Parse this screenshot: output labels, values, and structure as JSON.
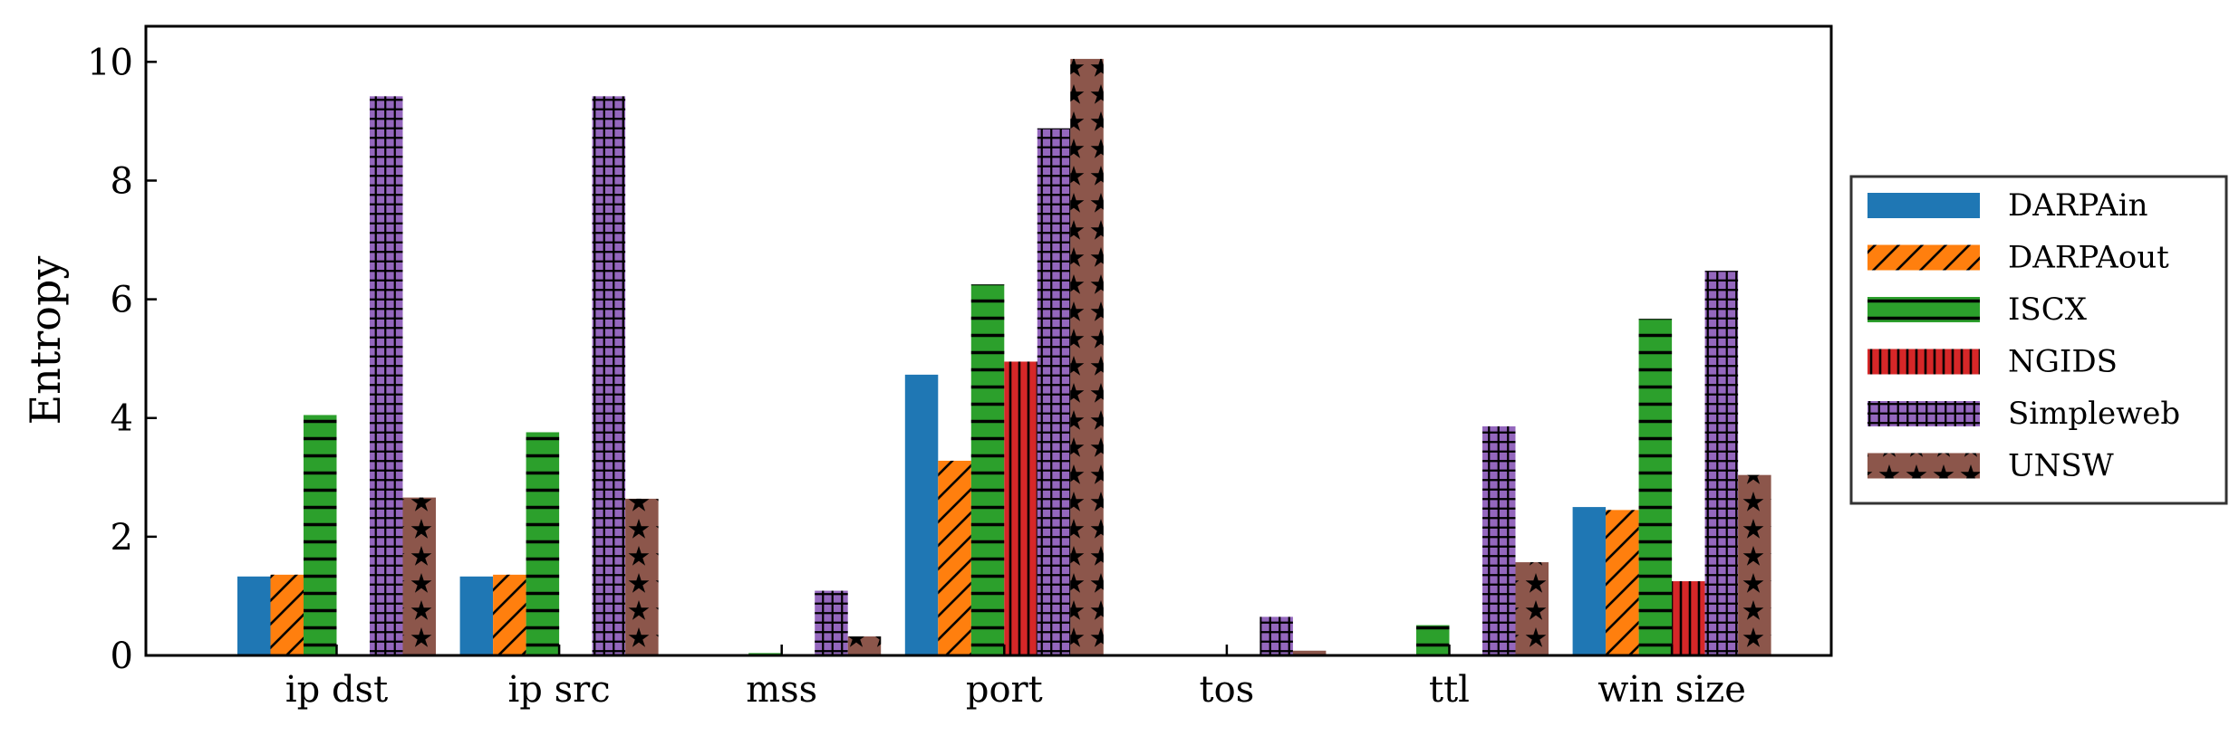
{
  "chart_data": {
    "type": "bar",
    "title": "",
    "xlabel": "",
    "ylabel": "Entropy",
    "ylim": [
      0,
      10.6
    ],
    "yticks": [
      0,
      2,
      4,
      6,
      8,
      10
    ],
    "ytick_labels": [
      "0",
      "2",
      "4",
      "6",
      "8",
      "10"
    ],
    "categories": [
      "ip dst",
      "ip src",
      "mss",
      "port",
      "tos",
      "ttl",
      "win size"
    ],
    "grid": false,
    "legend_position": "outside-right",
    "series": [
      {
        "name": "DARPAin",
        "color": "#1f77b4",
        "pattern": "none",
        "values": [
          1.33,
          1.33,
          0.0,
          4.73,
          0.0,
          0.0,
          2.5
        ]
      },
      {
        "name": "DARPAout",
        "color": "#ff7f0e",
        "pattern": "diagonal-hatch",
        "values": [
          1.36,
          1.36,
          0.0,
          3.28,
          0.0,
          0.0,
          2.45
        ]
      },
      {
        "name": "ISCX",
        "color": "#2ca02c",
        "pattern": "horizontal-hatch",
        "values": [
          4.05,
          3.76,
          0.04,
          6.25,
          0.0,
          0.51,
          5.67
        ]
      },
      {
        "name": "NGIDS",
        "color": "#d62728",
        "pattern": "vertical-hatch",
        "values": [
          0.0,
          0.0,
          0.0,
          4.95,
          0.0,
          0.0,
          1.25
        ]
      },
      {
        "name": "Simpleweb",
        "color": "#9467bd",
        "pattern": "grid-hatch",
        "values": [
          9.42,
          9.42,
          1.09,
          8.88,
          0.65,
          3.86,
          6.48
        ]
      },
      {
        "name": "UNSW",
        "color": "#8c564b",
        "pattern": "star-hatch",
        "values": [
          2.66,
          2.64,
          0.32,
          10.05,
          0.08,
          1.57,
          3.04
        ]
      }
    ]
  }
}
